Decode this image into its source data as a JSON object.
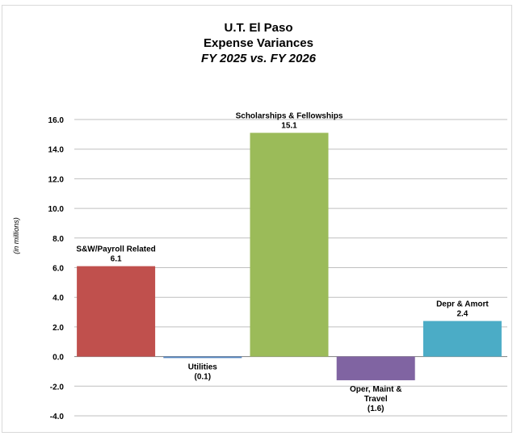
{
  "chart_data": {
    "type": "bar",
    "title": "U.T. El Paso",
    "subtitle": "Expense Variances",
    "period": "FY 2025 vs. FY 2026",
    "ylabel": "(in  millions)",
    "xlabel": "",
    "ylim": [
      -4.0,
      16.0
    ],
    "y_ticks": [
      "16.0",
      "14.0",
      "12.0",
      "10.0",
      "8.0",
      "6.0",
      "4.0",
      "2.0",
      "0.0",
      "-2.0",
      "-4.0"
    ],
    "grid": true,
    "bars": [
      {
        "label_lines": [
          "S&W/Payroll Related"
        ],
        "value": 6.1,
        "value_label": "6.1",
        "color": "#C0504D"
      },
      {
        "label_lines": [
          "Utilities"
        ],
        "value": -0.1,
        "value_label": "(0.1)",
        "color": "#4F81BD"
      },
      {
        "label_lines": [
          "Scholarships & Fellowships"
        ],
        "value": 15.1,
        "value_label": "15.1",
        "color": "#9BBB59"
      },
      {
        "label_lines": [
          "Oper, Maint &",
          "Travel"
        ],
        "value": -1.6,
        "value_label": "(1.6)",
        "color": "#8064A2"
      },
      {
        "label_lines": [
          "Depr & Amort"
        ],
        "value": 2.4,
        "value_label": "2.4",
        "color": "#4BACC6"
      }
    ]
  }
}
